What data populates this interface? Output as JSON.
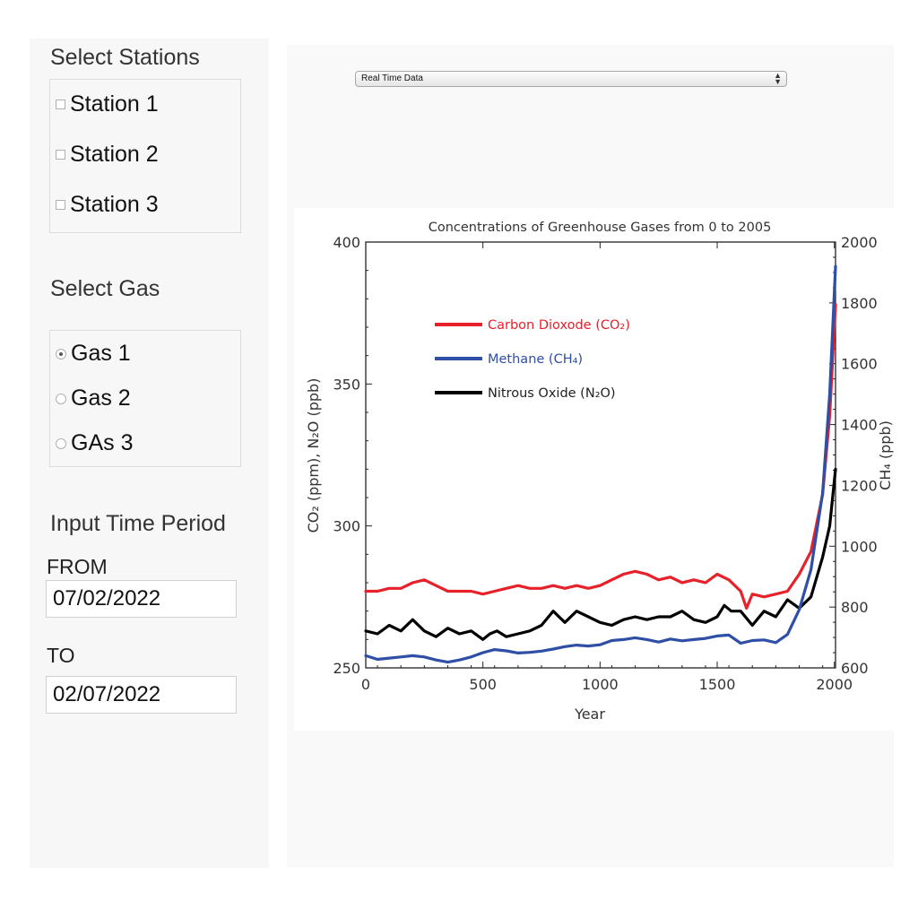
{
  "stations": {
    "title": "Select Stations",
    "items": [
      "Station 1",
      "Station 2",
      "Station 3"
    ]
  },
  "gas": {
    "title": "Select Gas",
    "items": [
      "Gas 1",
      "Gas 2",
      "GAs 3"
    ],
    "selected_index": 0
  },
  "period": {
    "title": "Input Time Period",
    "from_label": "FROM",
    "from_value": "07/02/2022",
    "to_label": "TO",
    "to_value": "02/07/2022"
  },
  "data_source": {
    "selected": "Real Time Data"
  },
  "chart_data": {
    "type": "line",
    "title": "Concentrations of Greenhouse Gases from 0 to 2005",
    "xlabel": "Year",
    "ylabel_left": "CO₂ (ppm), N₂O (ppb)",
    "ylabel_right": "CH₄ (ppb)",
    "xlim": [
      0,
      2005
    ],
    "ylim_left": [
      250,
      400
    ],
    "ylim_right": [
      600,
      2000
    ],
    "x_ticks": [
      0,
      500,
      1000,
      1500,
      2000
    ],
    "y_ticks_left": [
      250,
      300,
      350,
      400
    ],
    "y_ticks_right": [
      600,
      800,
      1000,
      1200,
      1400,
      1600,
      1800,
      2000
    ],
    "series": [
      {
        "name": "Carbon Dioxode (CO₂)",
        "color": "#e8202a",
        "axis": "left",
        "x": [
          0,
          50,
          100,
          150,
          200,
          250,
          300,
          350,
          400,
          450,
          500,
          550,
          600,
          650,
          700,
          750,
          800,
          850,
          900,
          950,
          1000,
          1050,
          1100,
          1150,
          1200,
          1250,
          1300,
          1350,
          1400,
          1450,
          1500,
          1550,
          1600,
          1625,
          1650,
          1700,
          1750,
          1800,
          1850,
          1900,
          1950,
          1980,
          2005
        ],
        "values": [
          277,
          277,
          278,
          278,
          280,
          281,
          279,
          277,
          277,
          277,
          276,
          277,
          278,
          279,
          278,
          278,
          279,
          278,
          279,
          278,
          279,
          281,
          283,
          284,
          283,
          281,
          282,
          280,
          281,
          280,
          283,
          281,
          277,
          271,
          276,
          275,
          276,
          277,
          283,
          291,
          311,
          339,
          378
        ]
      },
      {
        "name": "Methane (CH₄)",
        "color": "#2f4ea5",
        "axis": "right",
        "x": [
          0,
          50,
          100,
          150,
          200,
          250,
          300,
          350,
          400,
          450,
          500,
          550,
          600,
          650,
          700,
          750,
          800,
          850,
          900,
          950,
          1000,
          1050,
          1100,
          1150,
          1200,
          1250,
          1300,
          1350,
          1400,
          1450,
          1500,
          1550,
          1600,
          1650,
          1700,
          1750,
          1800,
          1850,
          1900,
          1950,
          1980,
          2005
        ],
        "values": [
          640,
          628,
          632,
          636,
          640,
          636,
          626,
          619,
          626,
          636,
          650,
          660,
          656,
          649,
          651,
          655,
          662,
          670,
          675,
          672,
          676,
          690,
          693,
          699,
          693,
          685,
          695,
          689,
          693,
          697,
          705,
          708,
          681,
          690,
          692,
          683,
          710,
          791,
          923,
          1175,
          1500,
          1920
        ]
      },
      {
        "name": "Nitrous Oxide (N₂O)",
        "color": "#000000",
        "axis": "left",
        "x": [
          0,
          50,
          100,
          150,
          200,
          250,
          300,
          350,
          400,
          450,
          500,
          530,
          560,
          600,
          650,
          700,
          750,
          800,
          850,
          900,
          950,
          1000,
          1050,
          1100,
          1150,
          1200,
          1250,
          1300,
          1350,
          1400,
          1450,
          1500,
          1530,
          1560,
          1600,
          1650,
          1700,
          1750,
          1800,
          1850,
          1900,
          1950,
          1980,
          2005
        ],
        "values": [
          263,
          262,
          265,
          263,
          267,
          263,
          261,
          264,
          262,
          263,
          260,
          262,
          263,
          261,
          262,
          263,
          265,
          270,
          266,
          270,
          268,
          266,
          265,
          267,
          268,
          267,
          268,
          268,
          270,
          267,
          266,
          268,
          272,
          270,
          270,
          265,
          270,
          268,
          274,
          271,
          275,
          289,
          300,
          320
        ]
      }
    ],
    "legend_position": "top-left"
  }
}
